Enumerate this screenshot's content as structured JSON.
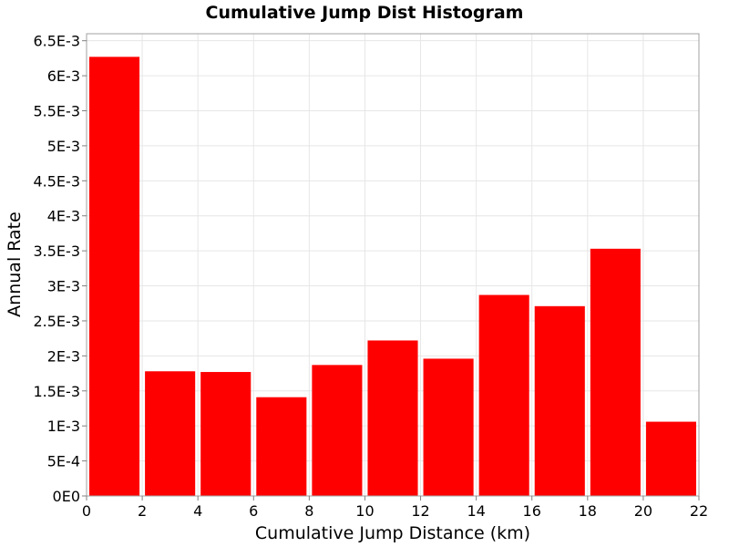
{
  "chart_data": {
    "type": "bar",
    "title": "Cumulative Jump Dist Histogram",
    "xlabel": "Cumulative Jump Distance (km)",
    "ylabel": "Annual Rate",
    "bin_edges": [
      0,
      2,
      4,
      6,
      8,
      10,
      12,
      14,
      16,
      18,
      20,
      22
    ],
    "values": [
      0.00627,
      0.00178,
      0.00177,
      0.00141,
      0.00187,
      0.00222,
      0.00196,
      0.00287,
      0.00271,
      0.00353,
      0.00106
    ],
    "xlim": [
      0,
      22
    ],
    "ylim": [
      0,
      0.0066
    ],
    "x_ticks": [
      {
        "value": 0,
        "label": "0"
      },
      {
        "value": 2,
        "label": "2"
      },
      {
        "value": 4,
        "label": "4"
      },
      {
        "value": 6,
        "label": "6"
      },
      {
        "value": 8,
        "label": "8"
      },
      {
        "value": 10,
        "label": "10"
      },
      {
        "value": 12,
        "label": "12"
      },
      {
        "value": 14,
        "label": "14"
      },
      {
        "value": 16,
        "label": "16"
      },
      {
        "value": 18,
        "label": "18"
      },
      {
        "value": 20,
        "label": "20"
      },
      {
        "value": 22,
        "label": "22"
      }
    ],
    "y_ticks": [
      {
        "value": 0,
        "label": "0E0"
      },
      {
        "value": 0.0005,
        "label": "5E-4"
      },
      {
        "value": 0.001,
        "label": "1E-3"
      },
      {
        "value": 0.0015,
        "label": "1.5E-3"
      },
      {
        "value": 0.002,
        "label": "2E-3"
      },
      {
        "value": 0.0025,
        "label": "2.5E-3"
      },
      {
        "value": 0.003,
        "label": "3E-3"
      },
      {
        "value": 0.0035,
        "label": "3.5E-3"
      },
      {
        "value": 0.004,
        "label": "4E-3"
      },
      {
        "value": 0.0045,
        "label": "4.5E-3"
      },
      {
        "value": 0.005,
        "label": "5E-3"
      },
      {
        "value": 0.0055,
        "label": "5.5E-3"
      },
      {
        "value": 0.006,
        "label": "6E-3"
      },
      {
        "value": 0.0065,
        "label": "6.5E-3"
      }
    ],
    "bar_color": "#ff0000",
    "grid": true,
    "legend": "none"
  }
}
